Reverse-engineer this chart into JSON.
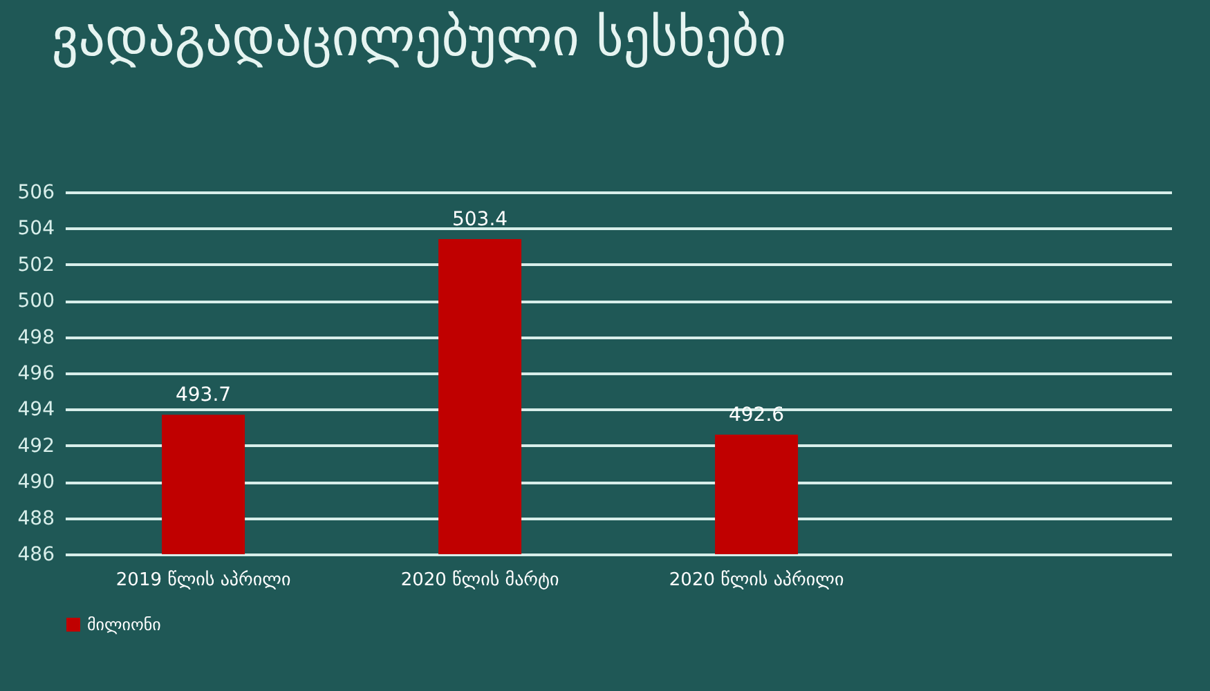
{
  "chart_data": {
    "type": "bar",
    "title": "ვადაგადაცილებული სესხები",
    "categories": [
      "2019 წლის აპრილი",
      "2020 წლის მარტი",
      "2020 წლის აპრილი"
    ],
    "series": [
      {
        "name": "მილიონი",
        "color": "#c00000",
        "values": [
          493.7,
          503.4,
          492.6
        ]
      }
    ],
    "ylim": [
      486,
      506
    ],
    "yticks": [
      486,
      488,
      490,
      492,
      494,
      496,
      498,
      500,
      502,
      504,
      506
    ],
    "grid": "y",
    "legend": "bottom",
    "data_labels": true
  }
}
